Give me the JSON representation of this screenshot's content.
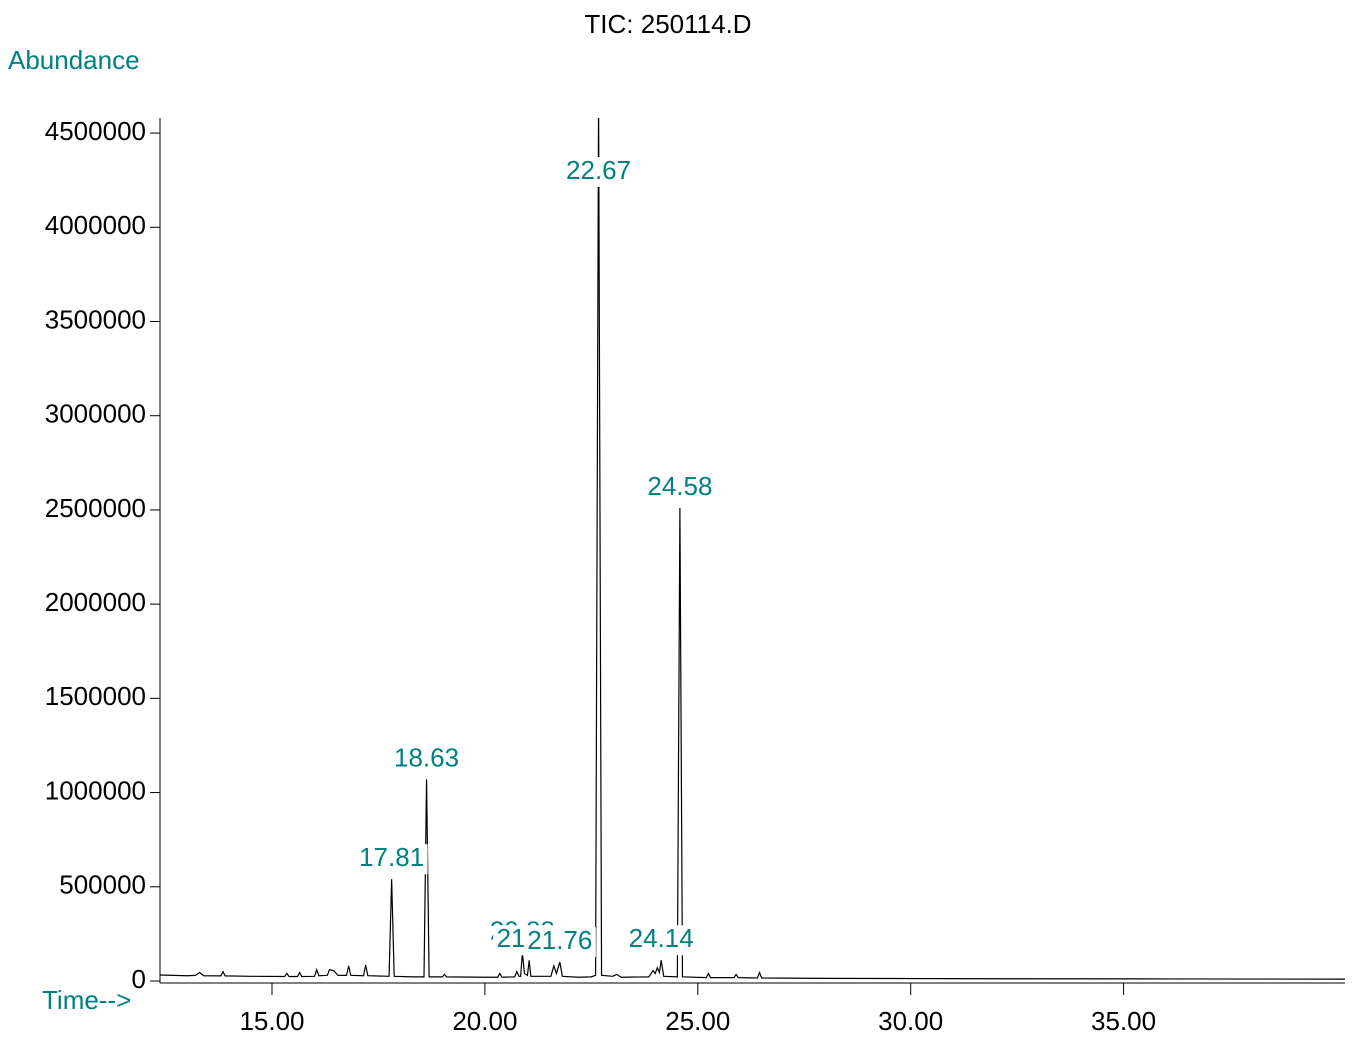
{
  "chart_data": {
    "type": "line",
    "title": "TIC: 250114.D",
    "y_label": "Abundance",
    "x_label": "Time-->",
    "xlim": [
      12.37,
      40.2
    ],
    "ylim": [
      0,
      4580000
    ],
    "xticks": [
      {
        "value": 15,
        "label": "15.00"
      },
      {
        "value": 20,
        "label": "20.00"
      },
      {
        "value": 25,
        "label": "25.00"
      },
      {
        "value": 30,
        "label": "30.00"
      },
      {
        "value": 35,
        "label": "35.00"
      }
    ],
    "yticks": [
      0,
      500000,
      1000000,
      1500000,
      2000000,
      2500000,
      3000000,
      3500000,
      4000000,
      4500000
    ],
    "label_color": "#008080",
    "series": [
      {
        "color": "#000000",
        "x": [
          12.37,
          13.0,
          13.2,
          13.3,
          13.4,
          13.8,
          13.85,
          13.9,
          14.5,
          15.3,
          15.35,
          15.4,
          15.6,
          15.65,
          15.7,
          16.0,
          16.05,
          16.1,
          16.3,
          16.35,
          16.45,
          16.55,
          16.75,
          16.8,
          16.85,
          17.15,
          17.2,
          17.25,
          17.75,
          17.81,
          17.87,
          18.3,
          18.57,
          18.63,
          18.69,
          19.0,
          19.05,
          19.1,
          20.0,
          20.3,
          20.35,
          20.4,
          20.7,
          20.75,
          20.8,
          20.84,
          20.88,
          20.93,
          21.0,
          21.04,
          21.08,
          21.55,
          21.62,
          21.68,
          21.76,
          21.82,
          22.2,
          22.5,
          22.6,
          22.67,
          22.74,
          23.0,
          23.1,
          23.2,
          23.85,
          23.95,
          24.0,
          24.05,
          24.1,
          24.14,
          24.2,
          24.52,
          24.58,
          24.64,
          25.2,
          25.25,
          25.3,
          25.85,
          25.9,
          25.95,
          26.4,
          26.45,
          26.5,
          28.0,
          32.0,
          36.0,
          40.2
        ],
        "values": [
          32000,
          28000,
          30000,
          45000,
          28000,
          27000,
          50000,
          27000,
          25000,
          24000,
          40000,
          24000,
          24000,
          45000,
          24000,
          25000,
          60000,
          28000,
          30000,
          60000,
          55000,
          30000,
          30000,
          80000,
          30000,
          28000,
          85000,
          28000,
          25000,
          540000,
          25000,
          22000,
          22000,
          1070000,
          22000,
          22000,
          35000,
          22000,
          20000,
          20000,
          40000,
          20000,
          22000,
          50000,
          25000,
          25000,
          150000,
          40000,
          30000,
          110000,
          25000,
          25000,
          80000,
          40000,
          100000,
          25000,
          20000,
          22000,
          30000,
          4700000,
          30000,
          25000,
          35000,
          20000,
          22000,
          55000,
          40000,
          70000,
          45000,
          110000,
          25000,
          22000,
          2510000,
          22000,
          18000,
          40000,
          18000,
          18000,
          35000,
          18000,
          16000,
          45000,
          16000,
          14000,
          12000,
          11000,
          10000
        ]
      }
    ],
    "annotations": [
      {
        "text": "17.81",
        "x": 17.81
      },
      {
        "text": "18.63",
        "x": 18.63
      },
      {
        "text": "20.88",
        "x": 20.88
      },
      {
        "text": "21.04",
        "x": 21.04
      },
      {
        "text": "21.76",
        "x": 21.76
      },
      {
        "text": "22.67",
        "x": 22.67
      },
      {
        "text": "24.14",
        "x": 24.14
      },
      {
        "text": "24.58",
        "x": 24.58
      }
    ]
  }
}
